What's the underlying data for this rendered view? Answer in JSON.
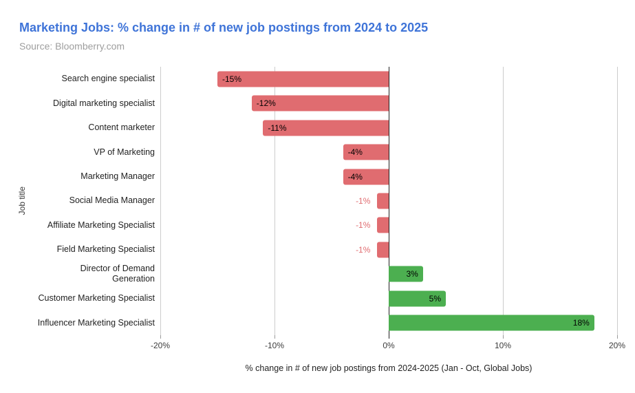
{
  "chart_data": {
    "type": "bar",
    "orientation": "horizontal",
    "title": "Marketing Jobs: % change in # of new job postings from 2024 to 2025",
    "subtitle": "Source: Bloomberry.com",
    "xlabel": "% change in # of new job postings from 2024-2025 (Jan - Oct, Global Jobs)",
    "ylabel": "Job title",
    "categories": [
      "Search engine specialist",
      "Digital marketing specialist",
      "Content marketer",
      "VP of Marketing",
      "Marketing Manager",
      "Social Media Manager",
      "Affiliate Marketing Specialist",
      "Field Marketing Specialist",
      "Director of Demand\nGeneration",
      "Customer Marketing Specialist",
      "Influencer Marketing Specialist"
    ],
    "values": [
      -15,
      -12,
      -11,
      -4,
      -4,
      -1,
      -1,
      -1,
      3,
      5,
      18
    ],
    "value_labels": [
      "-15%",
      "-12%",
      "-11%",
      "-4%",
      "-4%",
      "-1%",
      "-1%",
      "-1%",
      "3%",
      "5%",
      "18%"
    ],
    "xlim": [
      -20,
      20
    ],
    "xticks": [
      {
        "value": -20,
        "label": "-20%"
      },
      {
        "value": -10,
        "label": "-10%"
      },
      {
        "value": 0,
        "label": "0%"
      },
      {
        "value": 10,
        "label": "10%"
      },
      {
        "value": 20,
        "label": "20%"
      }
    ],
    "grid": true,
    "legend": "none",
    "colors": {
      "negative_bar": "#e06c70",
      "positive_bar": "#4caf50",
      "title": "#3f74d8",
      "subtitle": "#9e9e9e",
      "gridline": "#cccccc",
      "zero_line": "#212121",
      "value_label_inside": "#000000",
      "value_label_outside": "#e06c70"
    }
  }
}
